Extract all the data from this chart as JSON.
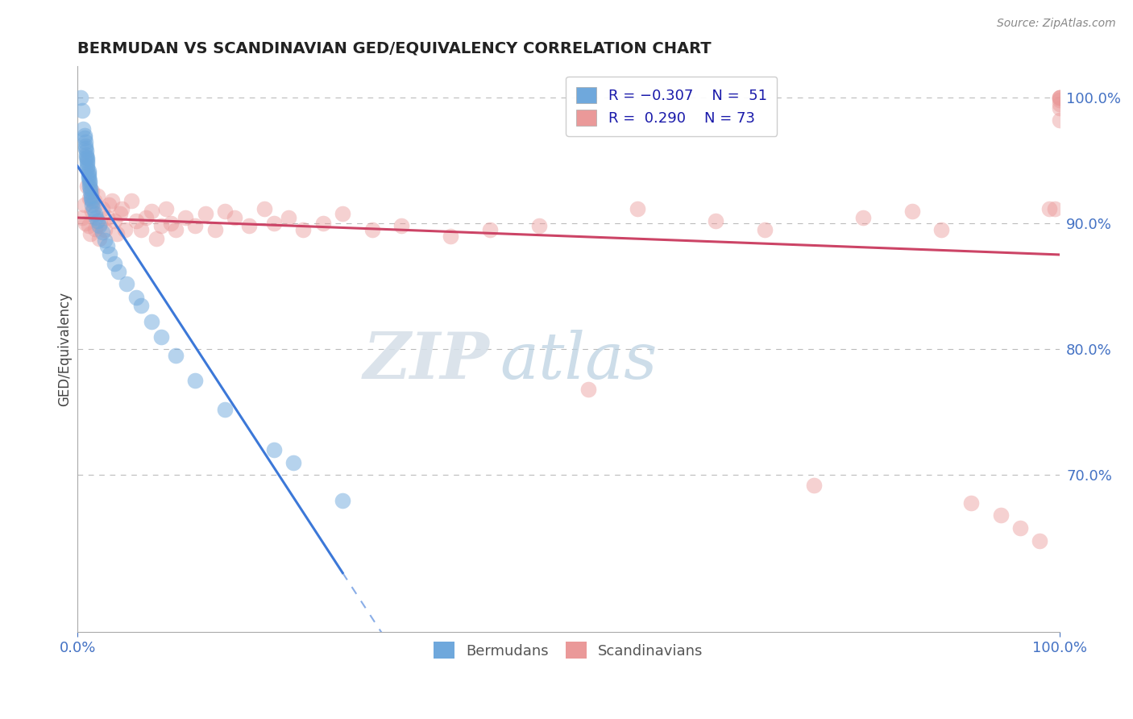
{
  "title": "BERMUDAN VS SCANDINAVIAN GED/EQUIVALENCY CORRELATION CHART",
  "source": "Source: ZipAtlas.com",
  "ylabel": "GED/Equivalency",
  "y_tick_labels": [
    "70.0%",
    "80.0%",
    "90.0%",
    "100.0%"
  ],
  "y_tick_values": [
    0.7,
    0.8,
    0.9,
    1.0
  ],
  "x_range": [
    0.0,
    1.0
  ],
  "y_range": [
    0.575,
    1.025
  ],
  "color_blue": "#6fa8dc",
  "color_pink": "#ea9999",
  "color_blue_line": "#3c78d8",
  "color_pink_line": "#cc4466",
  "watermark_zip": "ZIP",
  "watermark_atlas": "atlas",
  "bermudans_x": [
    0.003,
    0.005,
    0.006,
    0.007,
    0.007,
    0.008,
    0.008,
    0.008,
    0.009,
    0.009,
    0.009,
    0.01,
    0.01,
    0.01,
    0.01,
    0.01,
    0.011,
    0.011,
    0.011,
    0.011,
    0.012,
    0.012,
    0.012,
    0.013,
    0.013,
    0.014,
    0.014,
    0.015,
    0.015,
    0.016,
    0.018,
    0.019,
    0.02,
    0.022,
    0.025,
    0.028,
    0.03,
    0.033,
    0.038,
    0.042,
    0.05,
    0.06,
    0.065,
    0.075,
    0.085,
    0.1,
    0.12,
    0.15,
    0.2,
    0.22,
    0.27
  ],
  "bermudans_y": [
    1.0,
    0.99,
    0.975,
    0.97,
    0.968,
    0.965,
    0.962,
    0.96,
    0.958,
    0.955,
    0.953,
    0.952,
    0.95,
    0.948,
    0.946,
    0.944,
    0.942,
    0.94,
    0.938,
    0.936,
    0.934,
    0.932,
    0.93,
    0.928,
    0.925,
    0.922,
    0.92,
    0.918,
    0.915,
    0.912,
    0.908,
    0.905,
    0.902,
    0.898,
    0.893,
    0.887,
    0.882,
    0.876,
    0.868,
    0.862,
    0.852,
    0.841,
    0.835,
    0.822,
    0.81,
    0.795,
    0.775,
    0.752,
    0.72,
    0.71,
    0.68
  ],
  "scandinavians_x": [
    0.005,
    0.007,
    0.008,
    0.01,
    0.011,
    0.012,
    0.013,
    0.015,
    0.015,
    0.017,
    0.018,
    0.02,
    0.022,
    0.023,
    0.025,
    0.028,
    0.03,
    0.032,
    0.035,
    0.038,
    0.04,
    0.043,
    0.045,
    0.048,
    0.055,
    0.06,
    0.065,
    0.07,
    0.075,
    0.08,
    0.085,
    0.09,
    0.095,
    0.1,
    0.11,
    0.12,
    0.13,
    0.14,
    0.15,
    0.16,
    0.175,
    0.19,
    0.2,
    0.215,
    0.23,
    0.25,
    0.27,
    0.3,
    0.33,
    0.38,
    0.42,
    0.47,
    0.52,
    0.57,
    0.65,
    0.7,
    0.75,
    0.8,
    0.85,
    0.88,
    0.91,
    0.94,
    0.96,
    0.98,
    0.99,
    0.995,
    1.0,
    1.0,
    1.0,
    1.0,
    1.0,
    1.0,
    1.0
  ],
  "scandinavians_y": [
    0.905,
    0.915,
    0.9,
    0.93,
    0.898,
    0.92,
    0.892,
    0.926,
    0.91,
    0.918,
    0.896,
    0.922,
    0.888,
    0.9,
    0.912,
    0.895,
    0.905,
    0.915,
    0.918,
    0.902,
    0.892,
    0.908,
    0.912,
    0.895,
    0.918,
    0.902,
    0.895,
    0.905,
    0.91,
    0.888,
    0.898,
    0.912,
    0.9,
    0.895,
    0.905,
    0.898,
    0.908,
    0.895,
    0.91,
    0.905,
    0.898,
    0.912,
    0.9,
    0.905,
    0.895,
    0.9,
    0.908,
    0.895,
    0.898,
    0.89,
    0.895,
    0.898,
    0.768,
    0.912,
    0.902,
    0.895,
    0.692,
    0.905,
    0.91,
    0.895,
    0.678,
    0.668,
    0.658,
    0.648,
    0.912,
    0.912,
    0.982,
    0.992,
    0.995,
    0.998,
    1.0,
    1.0,
    1.0
  ]
}
